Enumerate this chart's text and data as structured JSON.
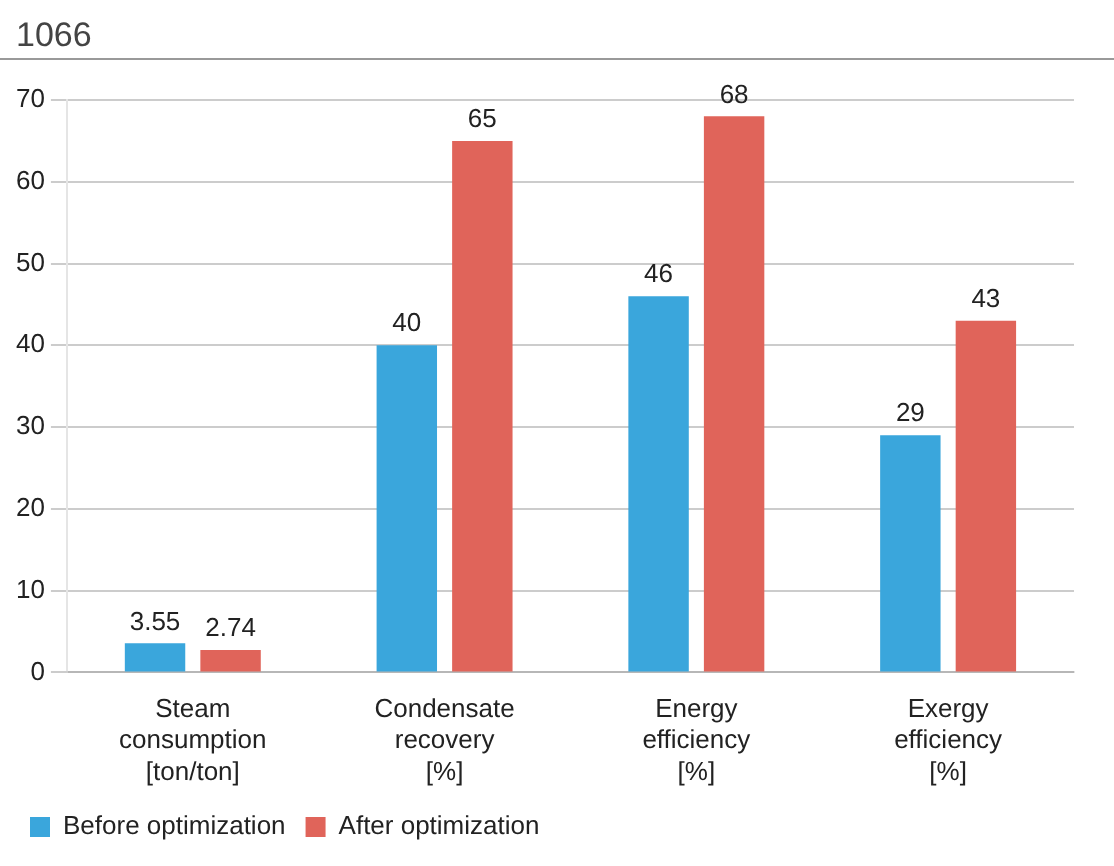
{
  "chart_data": {
    "type": "bar",
    "categories": [
      "Steam consumption [ton/ton]",
      "Condensate recovery [%]",
      "Energy efficiency [%]",
      "Exergy efficiency [%]"
    ],
    "series": [
      {
        "name": "Before optimization",
        "color": "#3aa6dc",
        "values": [
          3.55,
          40,
          46,
          29
        ]
      },
      {
        "name": "After optimization",
        "color": "#e0645a",
        "values": [
          2.74,
          65,
          68,
          43
        ]
      }
    ],
    "ylim": [
      0,
      70
    ],
    "yticks": [
      0,
      10,
      20,
      30,
      40,
      50,
      60,
      70
    ],
    "grid": "y",
    "legend": "bottom",
    "data_labels": true,
    "annotations": [
      "1066"
    ]
  }
}
